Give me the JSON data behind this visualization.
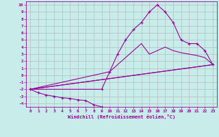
{
  "xlabel": "Windchill (Refroidissement éolien,°C)",
  "bg_color": "#c8ecea",
  "line_color": "#990099",
  "grid_color": "#b0b0b0",
  "xlim": [
    -0.5,
    23.5
  ],
  "ylim": [
    -4.5,
    10.5
  ],
  "xticks": [
    0,
    1,
    2,
    3,
    4,
    5,
    6,
    7,
    8,
    9,
    10,
    11,
    12,
    13,
    14,
    15,
    16,
    17,
    18,
    19,
    20,
    21,
    22,
    23
  ],
  "yticks": [
    -4,
    -3,
    -2,
    -1,
    0,
    1,
    2,
    3,
    4,
    5,
    6,
    7,
    8,
    9,
    10
  ],
  "curve1_x": [
    0,
    1,
    2,
    3,
    4,
    5,
    6,
    7,
    8,
    9
  ],
  "curve1_y": [
    -2,
    -2.5,
    -2.8,
    -3.0,
    -3.2,
    -3.3,
    -3.5,
    -3.6,
    -4.2,
    -4.5
  ],
  "curve2_x": [
    0,
    23
  ],
  "curve2_y": [
    -2,
    1.5
  ],
  "curve3_x": [
    0,
    23
  ],
  "curve3_y": [
    -2,
    1.5
  ],
  "curve4_x": [
    0,
    10,
    11,
    12,
    13,
    14,
    15,
    16,
    17,
    18,
    19,
    20,
    21,
    22,
    23
  ],
  "curve4_y": [
    -2,
    0.5,
    1.5,
    2.5,
    3.5,
    4.5,
    3.0,
    3.5,
    4.0,
    3.5,
    3.2,
    3.0,
    2.8,
    2.5,
    1.5
  ],
  "curve5_x": [
    0,
    9,
    10,
    11,
    12,
    13,
    14,
    15,
    16,
    17,
    18,
    19,
    20,
    21,
    22,
    23
  ],
  "curve5_y": [
    -2,
    -2,
    0.5,
    3.0,
    5.0,
    6.5,
    7.5,
    9.0,
    10.0,
    9.0,
    7.5,
    5.0,
    4.5,
    4.5,
    3.5,
    1.5
  ]
}
